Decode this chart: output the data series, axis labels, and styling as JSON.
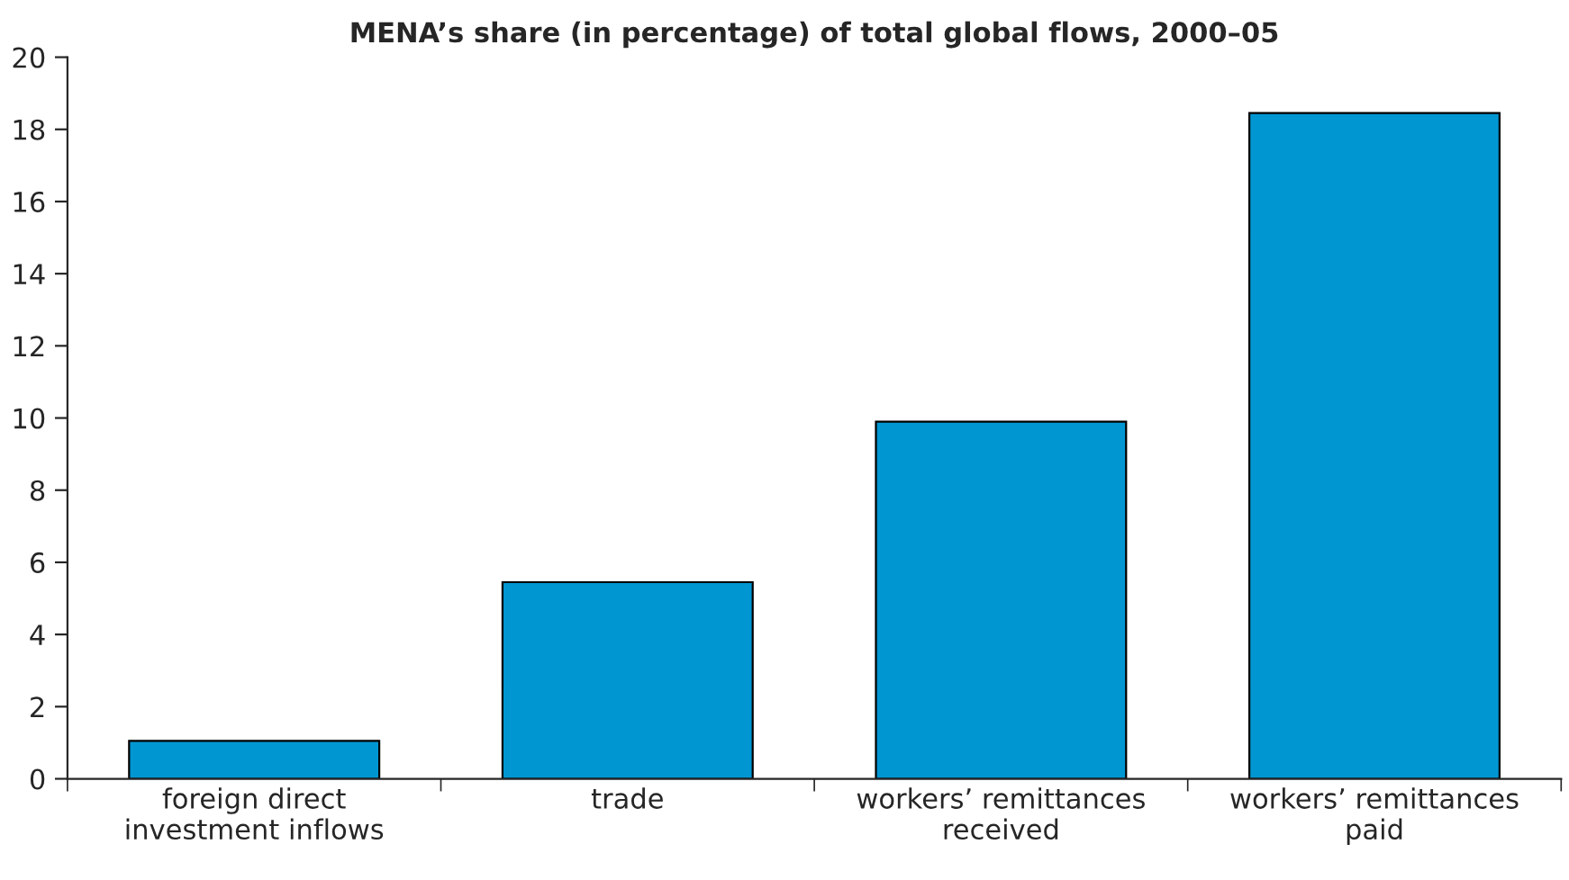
{
  "chart_data": {
    "type": "bar",
    "title": "MENA’s share (in percentage) of total global flows, 2000–05",
    "categories": [
      "foreign direct\ninvestment inflows",
      "trade",
      "workers’ remittances\nreceived",
      "workers’ remittances\npaid"
    ],
    "values": [
      1.05,
      5.45,
      9.9,
      18.45
    ],
    "color": "#0096d2",
    "ylim": [
      0,
      20
    ],
    "yticks": [
      0,
      2,
      4,
      6,
      8,
      10,
      12,
      14,
      16,
      18,
      20
    ],
    "grid": false
  }
}
